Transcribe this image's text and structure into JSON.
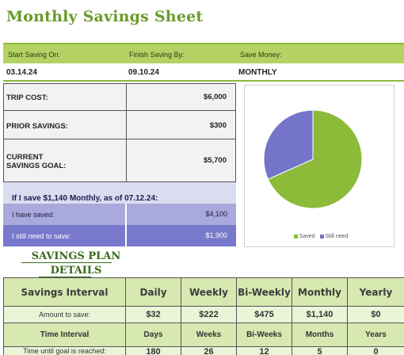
{
  "title": "Monthly Savings Sheet",
  "header": {
    "start_label": "Start Saving On:",
    "finish_label": "Finish Saving By:",
    "save_label": "Save Money:"
  },
  "values": {
    "start": "03.14.24",
    "finish": "09.10.24",
    "frequency": "MONTHLY"
  },
  "costs": [
    {
      "label": "TRIP COST:",
      "value": "$6,000"
    },
    {
      "label": "PRIOR SAVINGS:",
      "value": "$300"
    },
    {
      "label_line1": "CURRENT",
      "label_line2": "SAVINGS GOAL:",
      "value": "$5,700"
    }
  ],
  "if_save": "If I save $1,140 Monthly, as of 07.12.24:",
  "progress": {
    "saved_label": "I have saved:",
    "saved_value": "$4,100",
    "need_label": "I still need to save:",
    "need_value": "$1,900"
  },
  "chart_data": {
    "type": "pie",
    "slices": [
      {
        "name": "Saved",
        "value": 4100,
        "color": "#8cbb3a"
      },
      {
        "name": "Still need",
        "value": 1900,
        "color": "#7474c8"
      }
    ],
    "legend_position": "bottom"
  },
  "plan": {
    "title_line1": "SAVINGS PLAN",
    "title_line2": "DETAILS",
    "header": [
      "Savings Interval",
      "Daily",
      "Weekly",
      "Bi-Weekly",
      "Monthly",
      "Yearly"
    ],
    "amount_row": [
      "Amount to save:",
      "$32",
      "$222",
      "$475",
      "$1,140",
      "$0"
    ],
    "interval_row": [
      "Time Interval",
      "Days",
      "Weeks",
      "Bi-Weeks",
      "Months",
      "Years"
    ],
    "time_row": [
      "Time until goal is reached:",
      "180",
      "26",
      "12",
      "5",
      "0"
    ]
  }
}
